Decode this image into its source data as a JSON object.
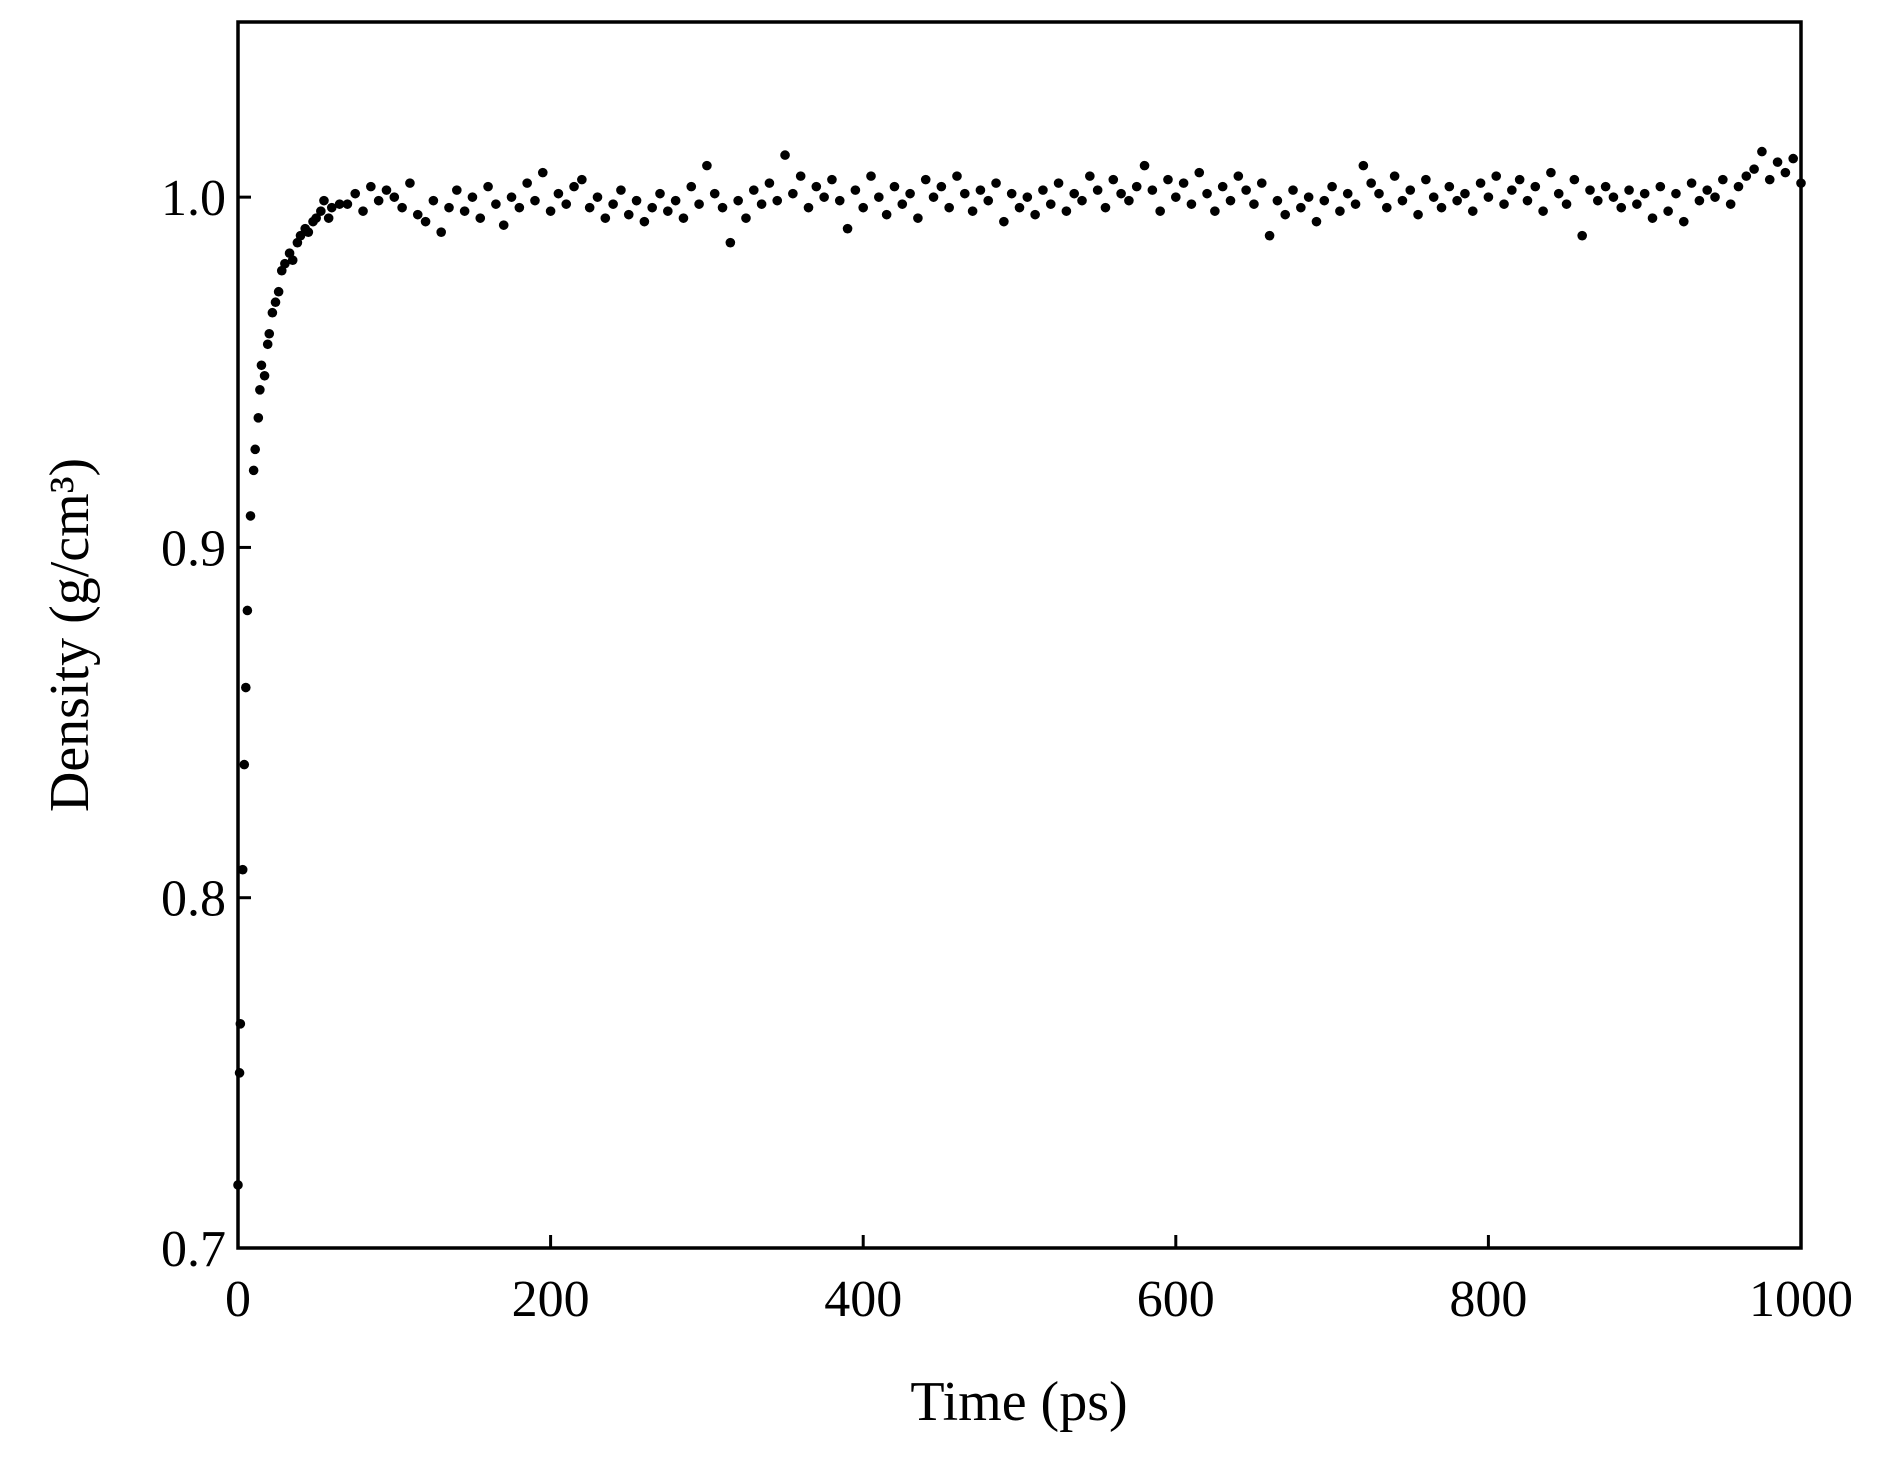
{
  "chart_data": {
    "type": "scatter",
    "xlabel": "Time (ps)",
    "ylabel": "Density (g/cm³)",
    "color": "#000000",
    "xlim": [
      0,
      1000
    ],
    "ylim": [
      0.7,
      1.05
    ],
    "xticks": [
      0,
      200,
      400,
      600,
      800,
      1000
    ],
    "yticks": [
      0.7,
      0.8,
      0.9,
      {
        "value": 1,
        "label": "1.0"
      }
    ],
    "x": [
      0,
      1,
      1.5,
      3,
      4,
      5,
      6,
      8,
      10,
      11,
      13,
      14,
      15,
      17,
      19,
      20,
      22,
      24,
      26,
      28,
      30,
      33,
      35,
      38,
      40,
      43,
      45,
      48,
      50,
      53,
      55,
      58,
      60,
      65,
      70,
      75,
      80,
      85,
      90,
      95,
      100,
      105,
      110,
      115,
      120,
      125,
      130,
      135,
      140,
      145,
      150,
      155,
      160,
      165,
      170,
      175,
      180,
      185,
      190,
      195,
      200,
      205,
      210,
      215,
      220,
      225,
      230,
      235,
      240,
      245,
      250,
      255,
      260,
      265,
      270,
      275,
      280,
      285,
      290,
      295,
      300,
      305,
      310,
      315,
      320,
      325,
      330,
      335,
      340,
      345,
      350,
      355,
      360,
      365,
      370,
      375,
      380,
      385,
      390,
      395,
      400,
      405,
      410,
      415,
      420,
      425,
      430,
      435,
      440,
      445,
      450,
      455,
      460,
      465,
      470,
      475,
      480,
      485,
      490,
      495,
      500,
      505,
      510,
      515,
      520,
      525,
      530,
      535,
      540,
      545,
      550,
      555,
      560,
      565,
      570,
      575,
      580,
      585,
      590,
      595,
      600,
      605,
      610,
      615,
      620,
      625,
      630,
      635,
      640,
      645,
      650,
      655,
      660,
      665,
      670,
      675,
      680,
      685,
      690,
      695,
      700,
      705,
      710,
      715,
      720,
      725,
      730,
      735,
      740,
      745,
      750,
      755,
      760,
      765,
      770,
      775,
      780,
      785,
      790,
      795,
      800,
      805,
      810,
      815,
      820,
      825,
      830,
      835,
      840,
      845,
      850,
      855,
      860,
      865,
      870,
      875,
      880,
      885,
      890,
      895,
      900,
      905,
      910,
      915,
      920,
      925,
      930,
      935,
      940,
      945,
      950,
      955,
      960,
      965,
      970,
      975,
      980,
      985,
      990,
      995,
      1000
    ],
    "values": [
      0.718,
      0.75,
      0.764,
      0.808,
      0.838,
      0.86,
      0.882,
      0.909,
      0.922,
      0.928,
      0.937,
      0.945,
      0.952,
      0.949,
      0.958,
      0.961,
      0.967,
      0.97,
      0.973,
      0.979,
      0.981,
      0.984,
      0.982,
      0.987,
      0.989,
      0.991,
      0.99,
      0.993,
      0.994,
      0.996,
      0.999,
      0.994,
      0.997,
      0.998,
      0.998,
      1.001,
      0.996,
      1.003,
      0.999,
      1.002,
      1.0,
      0.997,
      1.004,
      0.995,
      0.993,
      0.999,
      0.99,
      0.997,
      1.002,
      0.996,
      1.0,
      0.994,
      1.003,
      0.998,
      0.992,
      1.0,
      0.997,
      1.004,
      0.999,
      1.007,
      0.996,
      1.001,
      0.998,
      1.003,
      1.005,
      0.997,
      1.0,
      0.994,
      0.998,
      1.002,
      0.995,
      0.999,
      0.993,
      0.997,
      1.001,
      0.996,
      0.999,
      0.994,
      1.003,
      0.998,
      1.009,
      1.001,
      0.997,
      0.987,
      0.999,
      0.994,
      1.002,
      0.998,
      1.004,
      0.999,
      1.012,
      1.001,
      1.006,
      0.997,
      1.003,
      1.0,
      1.005,
      0.999,
      0.991,
      1.002,
      0.997,
      1.006,
      1.0,
      0.995,
      1.003,
      0.998,
      1.001,
      0.994,
      1.005,
      1.0,
      1.003,
      0.997,
      1.006,
      1.001,
      0.996,
      1.002,
      0.999,
      1.004,
      0.993,
      1.001,
      0.997,
      1.0,
      0.995,
      1.002,
      0.998,
      1.004,
      0.996,
      1.001,
      0.999,
      1.006,
      1.002,
      0.997,
      1.005,
      1.001,
      0.999,
      1.003,
      1.009,
      1.002,
      0.996,
      1.005,
      1.0,
      1.004,
      0.998,
      1.007,
      1.001,
      0.996,
      1.003,
      0.999,
      1.006,
      1.002,
      0.998,
      1.004,
      0.989,
      0.999,
      0.995,
      1.002,
      0.997,
      1.0,
      0.993,
      0.999,
      1.003,
      0.996,
      1.001,
      0.998,
      1.009,
      1.004,
      1.001,
      0.997,
      1.006,
      0.999,
      1.002,
      0.995,
      1.005,
      1.0,
      0.997,
      1.003,
      0.999,
      1.001,
      0.996,
      1.004,
      1.0,
      1.006,
      0.998,
      1.002,
      1.005,
      0.999,
      1.003,
      0.996,
      1.007,
      1.001,
      0.998,
      1.005,
      0.989,
      1.002,
      0.999,
      1.003,
      1.0,
      0.997,
      1.002,
      0.998,
      1.001,
      0.994,
      1.003,
      0.996,
      1.001,
      0.993,
      1.004,
      0.999,
      1.002,
      1.0,
      1.005,
      0.998,
      1.003,
      1.006,
      1.008,
      1.013,
      1.005,
      1.01,
      1.007,
      1.011,
      1.004
    ]
  }
}
